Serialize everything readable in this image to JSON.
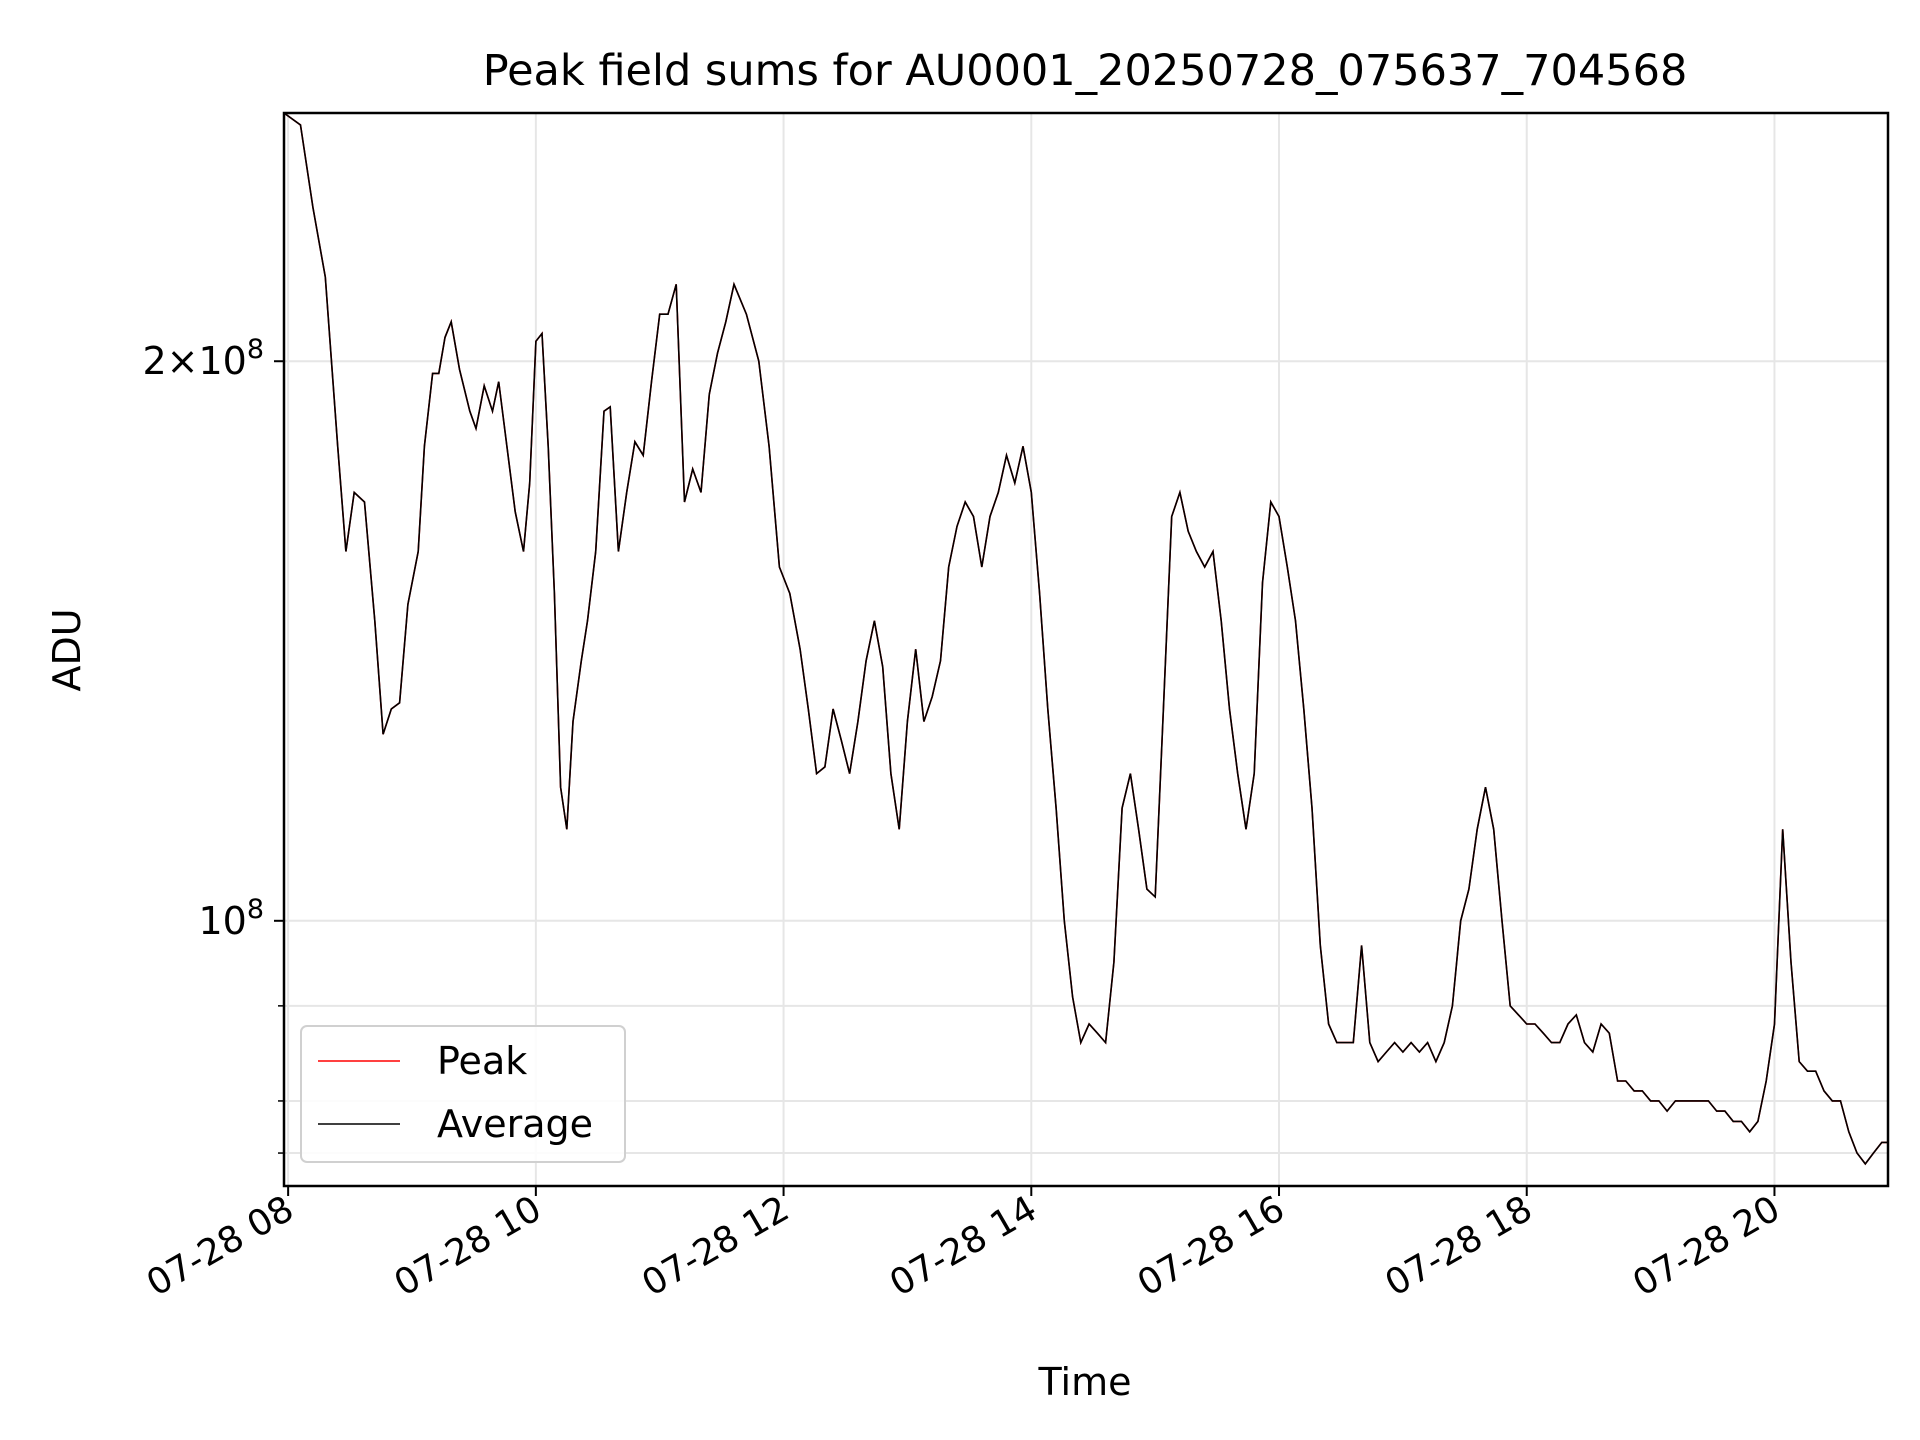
{
  "chart_data": {
    "type": "line",
    "title": "Peak field sums for AU0001_20250728_075637_704568",
    "xlabel": "Time",
    "ylabel": "ADU",
    "x_range": [
      "2025-07-28T07:58",
      "2025-07-28T20:55"
    ],
    "y_scale": "log",
    "ylim": [
      72000000,
      272000000
    ],
    "x_ticks": [
      {
        "t": "2025-07-28T08:00",
        "label": "07-28 08"
      },
      {
        "t": "2025-07-28T10:00",
        "label": "07-28 10"
      },
      {
        "t": "2025-07-28T12:00",
        "label": "07-28 12"
      },
      {
        "t": "2025-07-28T14:00",
        "label": "07-28 14"
      },
      {
        "t": "2025-07-28T16:00",
        "label": "07-28 16"
      },
      {
        "t": "2025-07-28T18:00",
        "label": "07-28 18"
      },
      {
        "t": "2025-07-28T20:00",
        "label": "07-28 20"
      }
    ],
    "y_major_ticks": [
      {
        "value": 100000000,
        "mantissa": "",
        "exponent": "8"
      },
      {
        "value": 200000000,
        "mantissa": "2",
        "exponent": "8"
      }
    ],
    "y_minor_ticks": [
      75000000,
      80000000,
      90000000
    ],
    "grid": true,
    "legend": {
      "placement": "lower-left",
      "entries": [
        "Peak",
        "Average"
      ]
    },
    "series": [
      {
        "name": "Average",
        "color": "#000000",
        "points": [
          [
            "07:58",
            272000000
          ],
          [
            "08:06",
            268000000
          ],
          [
            "08:12",
            242000000
          ],
          [
            "08:18",
            222000000
          ],
          [
            "08:24",
            180000000
          ],
          [
            "08:28",
            158000000
          ],
          [
            "08:32",
            170000000
          ],
          [
            "08:37",
            168000000
          ],
          [
            "08:42",
            145000000
          ],
          [
            "08:46",
            126000000
          ],
          [
            "08:50",
            130000000
          ],
          [
            "08:54",
            131000000
          ],
          [
            "08:58",
            148000000
          ],
          [
            "09:03",
            158000000
          ],
          [
            "09:06",
            180000000
          ],
          [
            "09:10",
            197000000
          ],
          [
            "09:13",
            197000000
          ],
          [
            "09:16",
            206000000
          ],
          [
            "09:19",
            210000000
          ],
          [
            "09:23",
            198000000
          ],
          [
            "09:28",
            188000000
          ],
          [
            "09:31",
            184000000
          ],
          [
            "09:35",
            194000000
          ],
          [
            "09:39",
            188000000
          ],
          [
            "09:42",
            195000000
          ],
          [
            "09:46",
            180000000
          ],
          [
            "09:50",
            166000000
          ],
          [
            "09:54",
            158000000
          ],
          [
            "09:57",
            172000000
          ],
          [
            "10:00",
            205000000
          ],
          [
            "10:03",
            207000000
          ],
          [
            "10:06",
            180000000
          ],
          [
            "10:09",
            150000000
          ],
          [
            "10:12",
            118000000
          ],
          [
            "10:15",
            112000000
          ],
          [
            "10:18",
            128000000
          ],
          [
            "10:22",
            138000000
          ],
          [
            "10:25",
            145000000
          ],
          [
            "10:29",
            158000000
          ],
          [
            "10:33",
            188000000
          ],
          [
            "10:36",
            189000000
          ],
          [
            "10:40",
            158000000
          ],
          [
            "10:44",
            170000000
          ],
          [
            "10:48",
            181000000
          ],
          [
            "10:52",
            178000000
          ],
          [
            "10:56",
            195000000
          ],
          [
            "11:00",
            212000000
          ],
          [
            "11:04",
            212000000
          ],
          [
            "11:08",
            220000000
          ],
          [
            "11:12",
            168000000
          ],
          [
            "11:16",
            175000000
          ],
          [
            "11:20",
            170000000
          ],
          [
            "11:24",
            192000000
          ],
          [
            "11:28",
            202000000
          ],
          [
            "11:32",
            210000000
          ],
          [
            "11:36",
            220000000
          ],
          [
            "11:42",
            212000000
          ],
          [
            "11:48",
            200000000
          ],
          [
            "11:53",
            180000000
          ],
          [
            "11:58",
            155000000
          ],
          [
            "12:03",
            150000000
          ],
          [
            "12:08",
            140000000
          ],
          [
            "12:12",
            130000000
          ],
          [
            "12:16",
            120000000
          ],
          [
            "12:20",
            121000000
          ],
          [
            "12:24",
            130000000
          ],
          [
            "12:28",
            125000000
          ],
          [
            "12:32",
            120000000
          ],
          [
            "12:36",
            128000000
          ],
          [
            "12:40",
            138000000
          ],
          [
            "12:44",
            145000000
          ],
          [
            "12:48",
            137000000
          ],
          [
            "12:52",
            120000000
          ],
          [
            "12:56",
            112000000
          ],
          [
            "13:00",
            128000000
          ],
          [
            "13:04",
            140000000
          ],
          [
            "13:08",
            128000000
          ],
          [
            "13:12",
            132000000
          ],
          [
            "13:16",
            138000000
          ],
          [
            "13:20",
            155000000
          ],
          [
            "13:24",
            163000000
          ],
          [
            "13:28",
            168000000
          ],
          [
            "13:32",
            165000000
          ],
          [
            "13:36",
            155000000
          ],
          [
            "13:40",
            165000000
          ],
          [
            "13:44",
            170000000
          ],
          [
            "13:48",
            178000000
          ],
          [
            "13:52",
            172000000
          ],
          [
            "13:56",
            180000000
          ],
          [
            "14:00",
            170000000
          ],
          [
            "14:04",
            150000000
          ],
          [
            "14:08",
            130000000
          ],
          [
            "14:12",
            115000000
          ],
          [
            "14:16",
            100000000
          ],
          [
            "14:20",
            91000000
          ],
          [
            "14:24",
            86000000
          ],
          [
            "14:28",
            88000000
          ],
          [
            "14:32",
            87000000
          ],
          [
            "14:36",
            86000000
          ],
          [
            "14:40",
            95000000
          ],
          [
            "14:44",
            115000000
          ],
          [
            "14:48",
            120000000
          ],
          [
            "14:52",
            112000000
          ],
          [
            "14:56",
            104000000
          ],
          [
            "15:00",
            103000000
          ],
          [
            "15:04",
            130000000
          ],
          [
            "15:08",
            165000000
          ],
          [
            "15:12",
            170000000
          ],
          [
            "15:16",
            162000000
          ],
          [
            "15:20",
            158000000
          ],
          [
            "15:24",
            155000000
          ],
          [
            "15:28",
            158000000
          ],
          [
            "15:32",
            145000000
          ],
          [
            "15:36",
            130000000
          ],
          [
            "15:40",
            120000000
          ],
          [
            "15:44",
            112000000
          ],
          [
            "15:48",
            120000000
          ],
          [
            "15:52",
            152000000
          ],
          [
            "15:56",
            168000000
          ],
          [
            "16:00",
            165000000
          ],
          [
            "16:04",
            155000000
          ],
          [
            "16:08",
            145000000
          ],
          [
            "16:12",
            130000000
          ],
          [
            "16:16",
            115000000
          ],
          [
            "16:20",
            97000000
          ],
          [
            "16:24",
            88000000
          ],
          [
            "16:28",
            86000000
          ],
          [
            "16:32",
            86000000
          ],
          [
            "16:36",
            86000000
          ],
          [
            "16:40",
            97000000
          ],
          [
            "16:44",
            86000000
          ],
          [
            "16:48",
            84000000
          ],
          [
            "16:52",
            85000000
          ],
          [
            "16:56",
            86000000
          ],
          [
            "17:00",
            85000000
          ],
          [
            "17:04",
            86000000
          ],
          [
            "17:08",
            85000000
          ],
          [
            "17:12",
            86000000
          ],
          [
            "17:16",
            84000000
          ],
          [
            "17:20",
            86000000
          ],
          [
            "17:24",
            90000000
          ],
          [
            "17:28",
            100000000
          ],
          [
            "17:32",
            104000000
          ],
          [
            "17:36",
            112000000
          ],
          [
            "17:40",
            118000000
          ],
          [
            "17:44",
            112000000
          ],
          [
            "17:48",
            100000000
          ],
          [
            "17:52",
            90000000
          ],
          [
            "17:56",
            89000000
          ],
          [
            "18:00",
            88000000
          ],
          [
            "18:04",
            88000000
          ],
          [
            "18:08",
            87000000
          ],
          [
            "18:12",
            86000000
          ],
          [
            "18:16",
            86000000
          ],
          [
            "18:20",
            88000000
          ],
          [
            "18:24",
            89000000
          ],
          [
            "18:28",
            86000000
          ],
          [
            "18:32",
            85000000
          ],
          [
            "18:36",
            88000000
          ],
          [
            "18:40",
            87000000
          ],
          [
            "18:44",
            82000000
          ],
          [
            "18:48",
            82000000
          ],
          [
            "18:52",
            81000000
          ],
          [
            "18:56",
            81000000
          ],
          [
            "19:00",
            80000000
          ],
          [
            "19:04",
            80000000
          ],
          [
            "19:08",
            79000000
          ],
          [
            "19:12",
            80000000
          ],
          [
            "19:16",
            80000000
          ],
          [
            "19:20",
            80000000
          ],
          [
            "19:24",
            80000000
          ],
          [
            "19:28",
            80000000
          ],
          [
            "19:32",
            79000000
          ],
          [
            "19:36",
            79000000
          ],
          [
            "19:40",
            78000000
          ],
          [
            "19:44",
            78000000
          ],
          [
            "19:48",
            77000000
          ],
          [
            "19:52",
            78000000
          ],
          [
            "19:56",
            82000000
          ],
          [
            "20:00",
            88000000
          ],
          [
            "20:04",
            112000000
          ],
          [
            "20:08",
            95000000
          ],
          [
            "20:12",
            84000000
          ],
          [
            "20:16",
            83000000
          ],
          [
            "20:20",
            83000000
          ],
          [
            "20:24",
            81000000
          ],
          [
            "20:28",
            80000000
          ],
          [
            "20:32",
            80000000
          ],
          [
            "20:36",
            77000000
          ],
          [
            "20:40",
            75000000
          ],
          [
            "20:44",
            74000000
          ],
          [
            "20:48",
            75000000
          ],
          [
            "20:52",
            76000000
          ],
          [
            "20:55",
            76000000
          ]
        ]
      }
    ]
  }
}
